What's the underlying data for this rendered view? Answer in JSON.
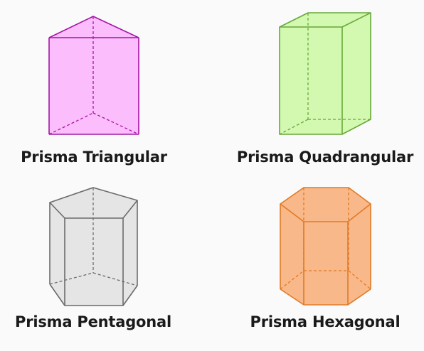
{
  "prisms": [
    {
      "name": "Prisma Triangular",
      "fill": "#fbbdfb",
      "stroke": "#a515a5"
    },
    {
      "name": "Prisma Quadrangular",
      "fill": "#d3f9b1",
      "stroke": "#68a83a"
    },
    {
      "name": "Prisma Pentagonal",
      "fill": "#e5e5e5",
      "stroke": "#6b6b6b"
    },
    {
      "name": "Prisma Hexagonal",
      "fill": "#f9b889",
      "stroke": "#e07a26"
    }
  ]
}
